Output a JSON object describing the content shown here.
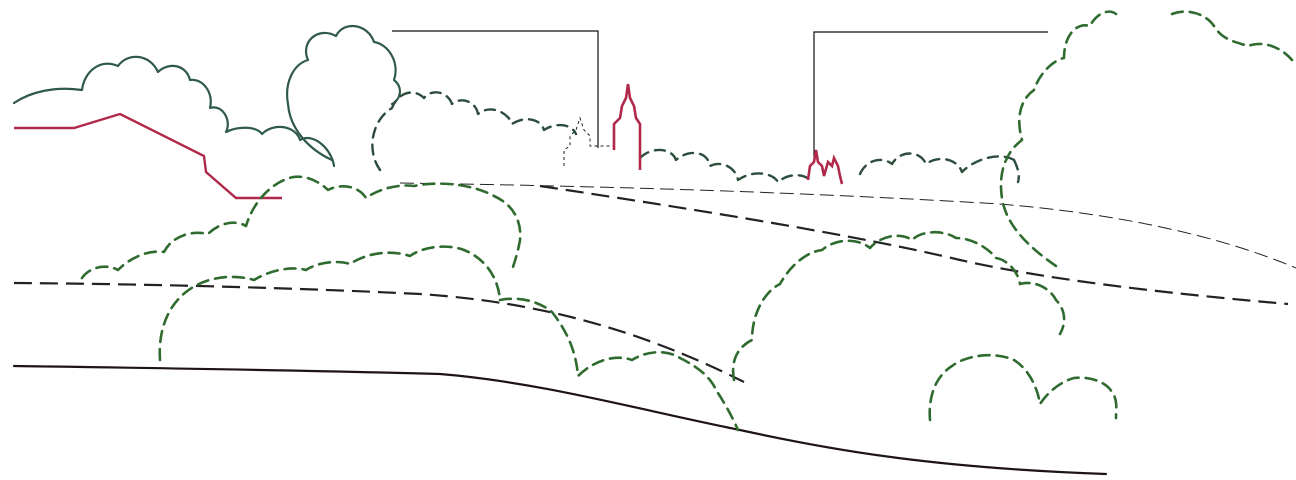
{
  "colors": {
    "tree_solid": "#2f5a49",
    "tree_dashed": "#2f6b2f",
    "tree_dashed_dark": "#2d4d3c",
    "accent": "#b0294a",
    "ground": "#1e1414"
  },
  "labels": {}
}
